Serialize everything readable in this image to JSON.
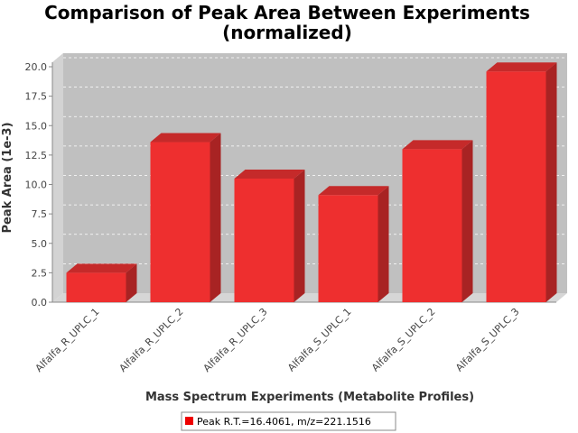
{
  "chart_data": {
    "type": "bar",
    "title_line1": "Comparison of Peak Area Between Experiments",
    "title_line2": "(normalized)",
    "xlabel": "Mass Spectrum Experiments (Metabolite Profiles)",
    "ylabel": "Peak Area (1e-3)",
    "categories": [
      "Alfalfa_R_UPLC_1",
      "Alfalfa_R_UPLC_2",
      "Alfalfa_R_UPLC_3",
      "Alfalfa_S_UPLC_1",
      "Alfalfa_S_UPLC_2",
      "Alfalfa_S_UPLC_3"
    ],
    "series": [
      {
        "name": "Peak R.T.=16.4061, m/z=221.1516",
        "values": [
          2.5,
          13.6,
          10.5,
          9.1,
          13.0,
          19.6
        ]
      }
    ],
    "ylim": [
      0,
      20
    ],
    "yticks": [
      "0.0",
      "2.5",
      "5.0",
      "7.5",
      "10.0",
      "12.5",
      "15.0",
      "17.5",
      "20.0"
    ],
    "grid": true,
    "legend_position": "bottom",
    "colors": {
      "bar_front": "#ee2f2f",
      "bar_top": "#c52a2a",
      "bar_side": "#a82323",
      "plot_bg": "#c0c0c0",
      "plot_wall": "#d3d3d3"
    }
  }
}
